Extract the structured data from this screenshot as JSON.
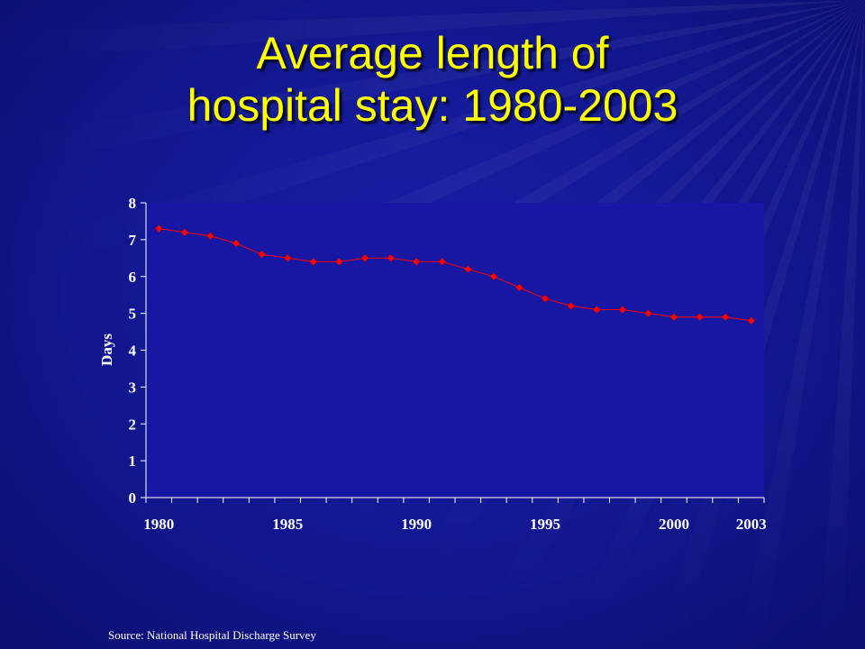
{
  "slide": {
    "title_line1": "Average length of",
    "title_line2": "hospital stay: 1980-2003",
    "source": "Source:  National Hospital Discharge Survey"
  },
  "colors": {
    "title": "#ffff00",
    "plot_background": "#1717a3",
    "series": "#ff0000",
    "axis": "#ffffff"
  },
  "chart_data": {
    "type": "line",
    "title": "",
    "xlabel": "",
    "ylabel": "Days",
    "ylim": [
      0,
      8
    ],
    "yticks": [
      0,
      1,
      2,
      3,
      4,
      5,
      6,
      7,
      8
    ],
    "xticks": [
      "1980",
      "1985",
      "1990",
      "1995",
      "2000",
      "2003"
    ],
    "x": [
      1980,
      1981,
      1982,
      1983,
      1984,
      1985,
      1986,
      1987,
      1988,
      1989,
      1990,
      1991,
      1992,
      1993,
      1994,
      1995,
      1996,
      1997,
      1998,
      1999,
      2000,
      2001,
      2002,
      2003
    ],
    "series": [
      {
        "name": "",
        "values": [
          7.3,
          7.2,
          7.1,
          6.9,
          6.6,
          6.5,
          6.4,
          6.4,
          6.5,
          6.5,
          6.4,
          6.4,
          6.2,
          6.0,
          5.7,
          5.4,
          5.2,
          5.1,
          5.1,
          5.0,
          4.9,
          4.9,
          4.9,
          4.8
        ]
      }
    ],
    "grid": false,
    "legend": "none",
    "marker": "diamond"
  }
}
